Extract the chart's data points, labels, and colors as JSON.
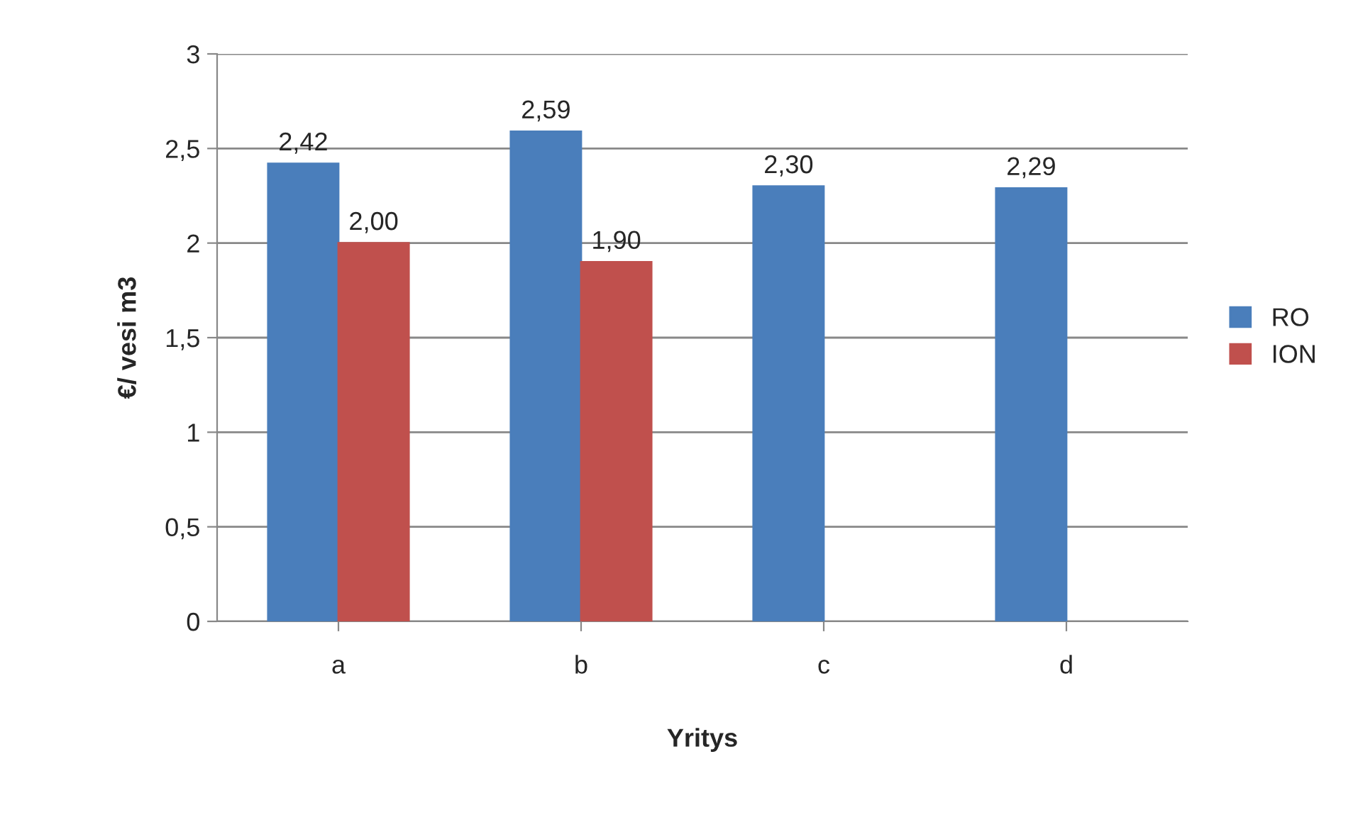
{
  "chart_data": {
    "type": "bar",
    "xlabel": "Yritys",
    "ylabel": "€/ vesi m3",
    "categories": [
      "a",
      "b",
      "c",
      "d"
    ],
    "series": [
      {
        "name": "RO",
        "color": "#4a7ebb",
        "values": [
          2.42,
          2.59,
          2.3,
          2.29
        ],
        "value_labels": [
          "2,42",
          "2,59",
          "2,30",
          "2,29"
        ]
      },
      {
        "name": "ION",
        "color": "#c0504d",
        "values": [
          2.0,
          1.9,
          null,
          null
        ],
        "value_labels": [
          "2,00",
          "1,90",
          null,
          null
        ]
      }
    ],
    "ylim": [
      0,
      3
    ],
    "yticks": [
      0,
      {
        "value": 0.5,
        "label": "0,5"
      },
      1,
      {
        "value": 1.5,
        "label": "1,5"
      },
      2,
      {
        "value": 2.5,
        "label": "2,5"
      },
      3
    ],
    "grid": "y",
    "legend": "right"
  }
}
